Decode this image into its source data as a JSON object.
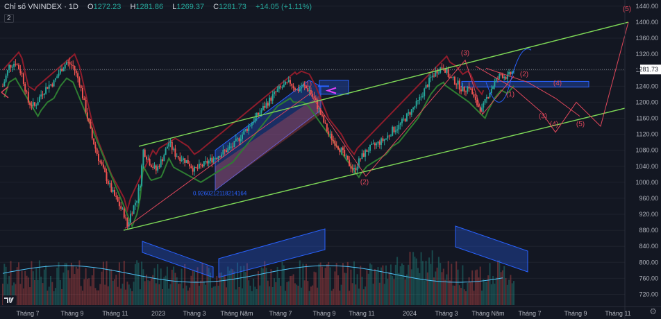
{
  "header": {
    "symbol": "Chỉ số VNINDEX · 1D",
    "o_label": "O",
    "o": "1272.23",
    "h_label": "H",
    "h": "1281.86",
    "l_label": "L",
    "l": "1269.37",
    "c_label": "C",
    "c": "1281.73",
    "change": "+14.05 (+1.11%)"
  },
  "indicator_badge": "2",
  "colors": {
    "background": "#131722",
    "grid": "#1e222d",
    "up": "#26a69a",
    "down": "#ef5350",
    "channel": "#7ed957",
    "wave": "#e0475b",
    "projection": "#2962ff",
    "supertrend_up": "#2e7d32",
    "supertrend_down": "#8e1c2b"
  },
  "chart_data": {
    "type": "candlestick",
    "y_axis": {
      "ticks": [
        1440,
        1400,
        1360,
        1320,
        1280,
        1240,
        1200,
        1160,
        1120,
        1080,
        1040,
        1000,
        960,
        920,
        880,
        840,
        800,
        760,
        720
      ],
      "range": [
        700,
        1445
      ]
    },
    "x_axis": {
      "labels": [
        "Tháng 7",
        "Tháng 9",
        "Tháng 11",
        "2023",
        "Tháng 3",
        "Tháng Năm",
        "Tháng 7",
        "Tháng 9",
        "Tháng 11",
        "2024",
        "Tháng 3",
        "Tháng Năm",
        "Tháng 7",
        "Tháng 9",
        "Tháng 11"
      ]
    },
    "last_price": "1281.73",
    "price_path": [
      [
        0,
        1240
      ],
      [
        2,
        1290
      ],
      [
        4,
        1300
      ],
      [
        6,
        1270
      ],
      [
        8,
        1200
      ],
      [
        10,
        1190
      ],
      [
        12,
        1220
      ],
      [
        14,
        1240
      ],
      [
        16,
        1250
      ],
      [
        18,
        1280
      ],
      [
        20,
        1300
      ],
      [
        22,
        1290
      ],
      [
        24,
        1250
      ],
      [
        26,
        1180
      ],
      [
        28,
        1110
      ],
      [
        30,
        1060
      ],
      [
        32,
        1020
      ],
      [
        34,
        980
      ],
      [
        36,
        950
      ],
      [
        38,
        920
      ],
      [
        39,
        890
      ],
      [
        40,
        920
      ],
      [
        42,
        960
      ],
      [
        43,
        1000
      ],
      [
        44,
        1080
      ],
      [
        46,
        1050
      ],
      [
        48,
        1030
      ],
      [
        50,
        1060
      ],
      [
        52,
        1100
      ],
      [
        54,
        1070
      ],
      [
        56,
        1060
      ],
      [
        58,
        1050
      ],
      [
        60,
        1030
      ],
      [
        62,
        1040
      ],
      [
        64,
        1050
      ],
      [
        66,
        1060
      ],
      [
        68,
        1070
      ],
      [
        70,
        1080
      ],
      [
        72,
        1090
      ],
      [
        74,
        1110
      ],
      [
        76,
        1130
      ],
      [
        78,
        1150
      ],
      [
        80,
        1170
      ],
      [
        82,
        1190
      ],
      [
        84,
        1210
      ],
      [
        86,
        1230
      ],
      [
        88,
        1240
      ],
      [
        90,
        1250
      ],
      [
        92,
        1230
      ],
      [
        94,
        1240
      ],
      [
        96,
        1230
      ],
      [
        98,
        1200
      ],
      [
        100,
        1160
      ],
      [
        102,
        1120
      ],
      [
        104,
        1100
      ],
      [
        106,
        1080
      ],
      [
        108,
        1050
      ],
      [
        110,
        1030
      ],
      [
        112,
        1060
      ],
      [
        114,
        1080
      ],
      [
        116,
        1090
      ],
      [
        118,
        1100
      ],
      [
        120,
        1110
      ],
      [
        122,
        1130
      ],
      [
        124,
        1140
      ],
      [
        126,
        1160
      ],
      [
        128,
        1180
      ],
      [
        130,
        1200
      ],
      [
        132,
        1230
      ],
      [
        134,
        1260
      ],
      [
        136,
        1280
      ],
      [
        138,
        1290
      ],
      [
        140,
        1260
      ],
      [
        142,
        1250
      ],
      [
        144,
        1230
      ],
      [
        146,
        1240
      ],
      [
        148,
        1200
      ],
      [
        150,
        1180
      ],
      [
        152,
        1220
      ],
      [
        154,
        1250
      ],
      [
        156,
        1270
      ],
      [
        158,
        1262
      ],
      [
        160,
        1281
      ]
    ],
    "annotations": {
      "wave_labels": [
        "(1)",
        "(2)",
        "(3)",
        "(2)",
        "(1)",
        "(3)",
        "(4)",
        "(5)",
        "(4)",
        "(5)"
      ],
      "fib_label": "0.9260212118214164"
    }
  }
}
